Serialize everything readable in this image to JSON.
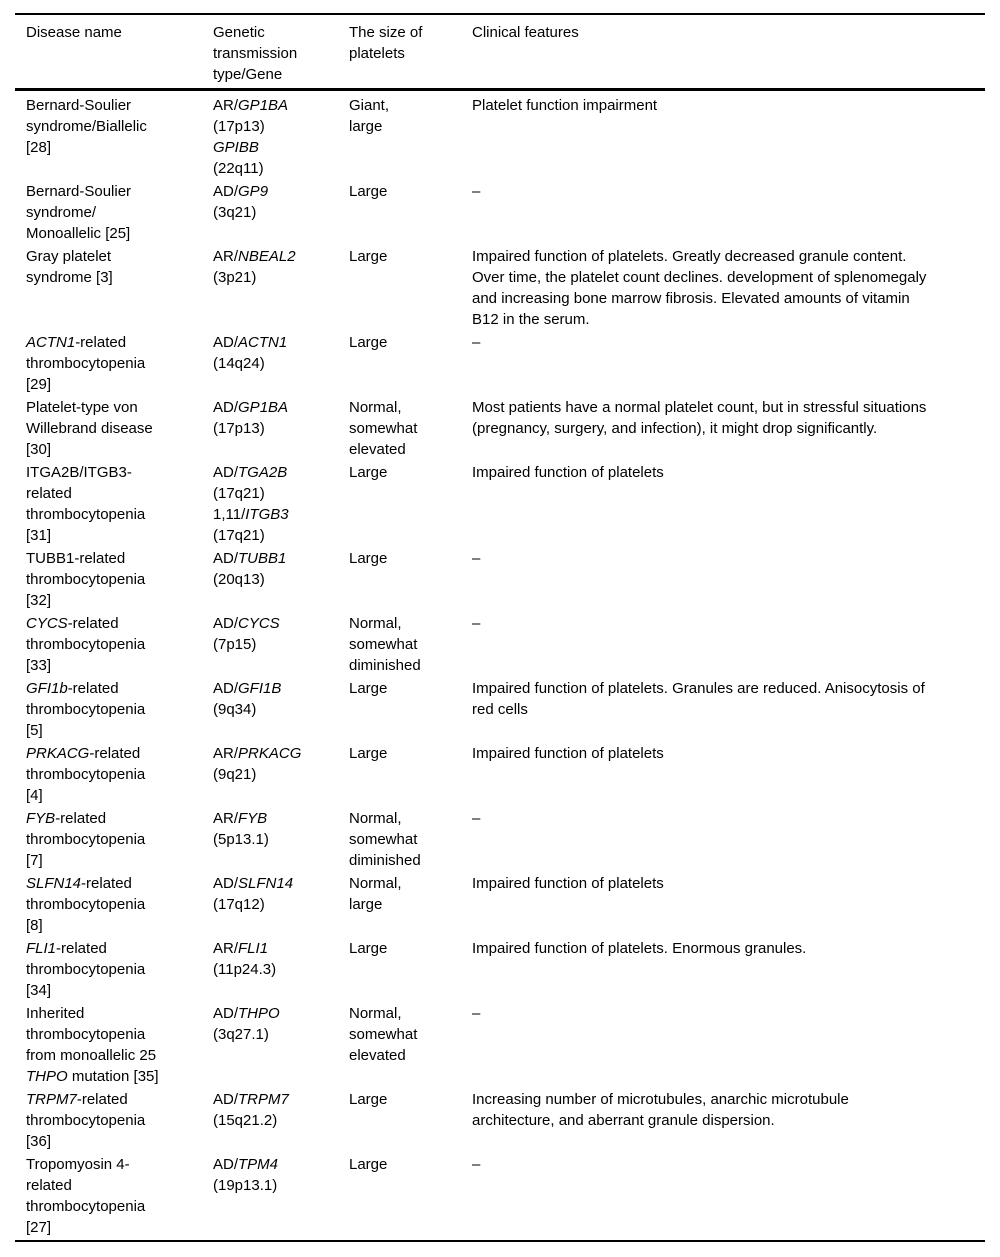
{
  "page": {
    "background_color": "#ffffff",
    "text_color": "#000000",
    "rule_color": "#000000"
  },
  "table": {
    "italic_marker": "*",
    "headers": [
      "Disease name",
      "Genetic\ntransmission\ntype/Gene",
      "The size of\nplatelets",
      "Clinical features"
    ],
    "rows": [
      {
        "disease_name": "Bernard-Soulier\nsyndrome/Biallelic\n[28]",
        "genetic_transmission": "AR/*GP1BA*\n(17p13)\n*GPIBB*\n(22q11)",
        "platelet_size": "Giant,\nlarge",
        "clinical_features": "Platelet function impairment"
      },
      {
        "disease_name": "Bernard-Soulier\nsyndrome/\nMonoallelic [25]",
        "genetic_transmission": "AD/*GP9*\n(3q21)",
        "platelet_size": "Large",
        "clinical_features": "–"
      },
      {
        "disease_name": "Gray platelet\nsyndrome [3]",
        "genetic_transmission": "AR/*NBEAL2*\n(3p21)",
        "platelet_size": "Large",
        "clinical_features": "Impaired function of platelets. Greatly decreased granule content.\nOver time, the platelet count declines. development of splenomegaly\nand increasing bone marrow fibrosis. Elevated amounts of vitamin\nB12 in the serum."
      },
      {
        "disease_name": "*ACTN1*-related\nthrombocytopenia\n[29]",
        "genetic_transmission": "AD/*ACTN1*\n(14q24)",
        "platelet_size": "Large",
        "clinical_features": "–"
      },
      {
        "disease_name": "Platelet-type von\nWillebrand disease\n[30]",
        "genetic_transmission": "AD/*GP1BA*\n(17p13)",
        "platelet_size": "Normal,\nsomewhat\nelevated",
        "clinical_features": "Most patients have a normal platelet count, but in stressful situations\n(pregnancy, surgery, and infection), it might drop significantly."
      },
      {
        "disease_name": "ITGA2B/ITGB3-\nrelated\nthrombocytopenia\n[31]",
        "genetic_transmission": "AD/*TGA2B*\n(17q21)\n1,11/*ITGB3*\n(17q21)",
        "platelet_size": "Large",
        "clinical_features": "Impaired function of platelets"
      },
      {
        "disease_name": "TUBB1-related\nthrombocytopenia\n[32]",
        "genetic_transmission": "AD/*TUBB1*\n(20q13)",
        "platelet_size": "Large",
        "clinical_features": "–"
      },
      {
        "disease_name": "*CYCS*-related\nthrombocytopenia\n[33]",
        "genetic_transmission": "AD/*CYCS*\n(7p15)",
        "platelet_size": "Normal,\nsomewhat\ndiminished",
        "clinical_features": "–"
      },
      {
        "disease_name": "*GFI1b*-related\nthrombocytopenia\n[5]",
        "genetic_transmission": "AD/*GFI1B*\n(9q34)",
        "platelet_size": "Large",
        "clinical_features": "Impaired function of platelets. Granules are reduced. Anisocytosis of\nred cells"
      },
      {
        "disease_name": "*PRKACG*-related\nthrombocytopenia\n[4]",
        "genetic_transmission": "AR/*PRKACG*\n(9q21)",
        "platelet_size": "Large",
        "clinical_features": "Impaired function of platelets"
      },
      {
        "disease_name": "*FYB*-related\nthrombocytopenia\n[7]",
        "genetic_transmission": "AR/*FYB*\n(5p13.1)",
        "platelet_size": "Normal,\nsomewhat\ndiminished",
        "clinical_features": "–"
      },
      {
        "disease_name": "*SLFN14*-related\nthrombocytopenia\n[8]",
        "genetic_transmission": "AD/*SLFN14*\n(17q12)",
        "platelet_size": "Normal,\nlarge",
        "clinical_features": "Impaired function of platelets"
      },
      {
        "disease_name": "*FLI1*-related\nthrombocytopenia\n[34]",
        "genetic_transmission": "AR/*FLI1*\n(11p24.3)",
        "platelet_size": "Large",
        "clinical_features": "Impaired function of platelets. Enormous granules."
      },
      {
        "disease_name": "Inherited\nthrombocytopenia\nfrom monoallelic 25\n*THPO* mutation [35]",
        "genetic_transmission": "AD/*THPO*\n(3q27.1)",
        "platelet_size": "Normal,\nsomewhat\nelevated",
        "clinical_features": "–"
      },
      {
        "disease_name": "*TRPM7*-related\nthrombocytopenia\n[36]",
        "genetic_transmission": "AD/*TRPM7*\n(15q21.2)",
        "platelet_size": "Large",
        "clinical_features": "Increasing number of microtubules, anarchic microtubule\narchitecture, and aberrant granule dispersion."
      },
      {
        "disease_name": "Tropomyosin 4-\nrelated\nthrombocytopenia\n[27]",
        "genetic_transmission": "AD/*TPM4*\n(19p13.1)",
        "platelet_size": "Large",
        "clinical_features": "–"
      }
    ]
  }
}
